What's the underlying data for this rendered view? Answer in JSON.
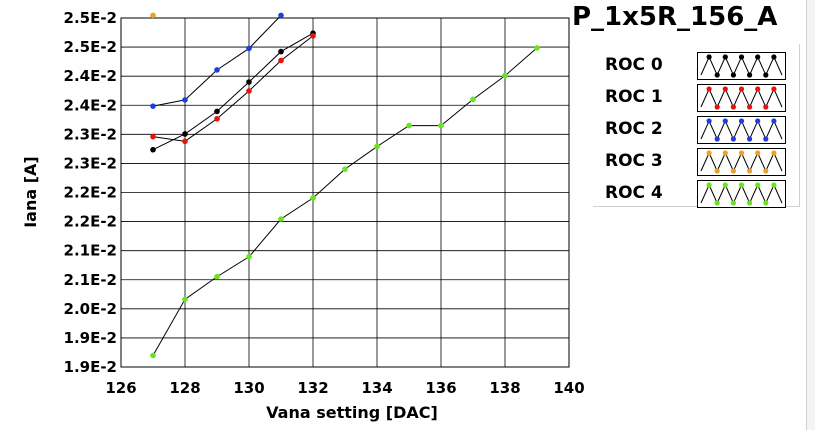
{
  "window": {
    "title": "P_1x5R_156_A"
  },
  "chart_data": {
    "type": "line",
    "title": "P_1x5R_156_A",
    "xlabel": "Vana setting [DAC]",
    "ylabel": "Iana [A]",
    "xlim": [
      126,
      140
    ],
    "ylim": [
      0.0187,
      0.02535
    ],
    "grid": true,
    "legend_position": "right",
    "x_ticks": [
      "126",
      "128",
      "130",
      "132",
      "134",
      "136",
      "138",
      "140"
    ],
    "y_ticks": [
      "1.9E-2",
      "1.9E-2",
      "2.0E-2",
      "2.1E-2",
      "2.1E-2",
      "2.2E-2",
      "2.2E-2",
      "2.3E-2",
      "2.3E-2",
      "2.4E-2",
      "2.4E-2",
      "2.5E-2",
      "2.5E-2"
    ],
    "series": [
      {
        "name": "ROC 0",
        "color": "#000000",
        "x": [
          127,
          128,
          129,
          130,
          131,
          132
        ],
        "y": [
          0.02284,
          0.02314,
          0.02357,
          0.02413,
          0.02471,
          0.02506
        ]
      },
      {
        "name": "ROC 1",
        "color": "#e8120c",
        "x": [
          127,
          128,
          129,
          130,
          131,
          132
        ],
        "y": [
          0.02309,
          0.023,
          0.02343,
          0.02396,
          0.02454,
          0.02501
        ]
      },
      {
        "name": "ROC 2",
        "color": "#1a3fe0",
        "x": [
          127,
          128,
          129,
          130,
          131
        ],
        "y": [
          0.02367,
          0.02379,
          0.02436,
          0.02477,
          0.0254
        ]
      },
      {
        "name": "ROC 3",
        "color": "#f0a020",
        "x": [
          127
        ],
        "y": [
          0.0254
        ]
      },
      {
        "name": "ROC 4",
        "color": "#66e61a",
        "x": [
          127,
          128,
          129,
          130,
          131,
          132,
          133,
          134,
          135,
          136,
          137,
          138,
          139
        ],
        "y": [
          0.01892,
          0.01999,
          0.02042,
          0.0208,
          0.02152,
          0.02192,
          0.02247,
          0.0229,
          0.0233,
          0.0233,
          0.0238,
          0.02425,
          0.02478
        ]
      }
    ]
  }
}
